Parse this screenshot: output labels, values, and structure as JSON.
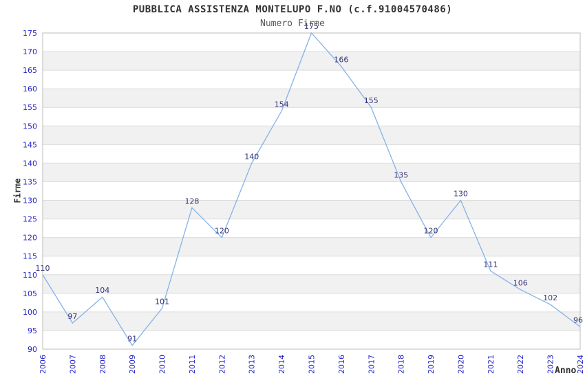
{
  "chart_data": {
    "type": "line",
    "title": "PUBBLICA ASSISTENZA MONTELUPO F.NO (c.f.91004570486)",
    "subtitle": "Numero Firme",
    "xlabel": "Anno",
    "ylabel": "Firme",
    "categories": [
      "2006",
      "2007",
      "2008",
      "2009",
      "2010",
      "2011",
      "2012",
      "2013",
      "2014",
      "2015",
      "2016",
      "2017",
      "2018",
      "2019",
      "2020",
      "2021",
      "2022",
      "2023",
      "2024"
    ],
    "values": [
      110,
      97,
      104,
      91,
      101,
      128,
      120,
      140,
      154,
      175,
      166,
      155,
      135,
      120,
      130,
      111,
      106,
      102,
      96
    ],
    "yticks": [
      90,
      95,
      100,
      105,
      110,
      115,
      120,
      125,
      130,
      135,
      140,
      145,
      150,
      155,
      160,
      165,
      170,
      175
    ],
    "ylim": [
      90,
      175
    ],
    "grid": true,
    "banded_background": true,
    "legend": "none",
    "data_labels_shown": true,
    "colors": {
      "line": "#85b2e6",
      "data_label": "#333377",
      "tick_label": "#2222cc",
      "band": "#f1f1f1",
      "gridline": "#dcdcdc",
      "plot_border": "#bbbbbb",
      "title": "#333333",
      "subtitle": "#555555",
      "axis_title": "#333333"
    }
  }
}
